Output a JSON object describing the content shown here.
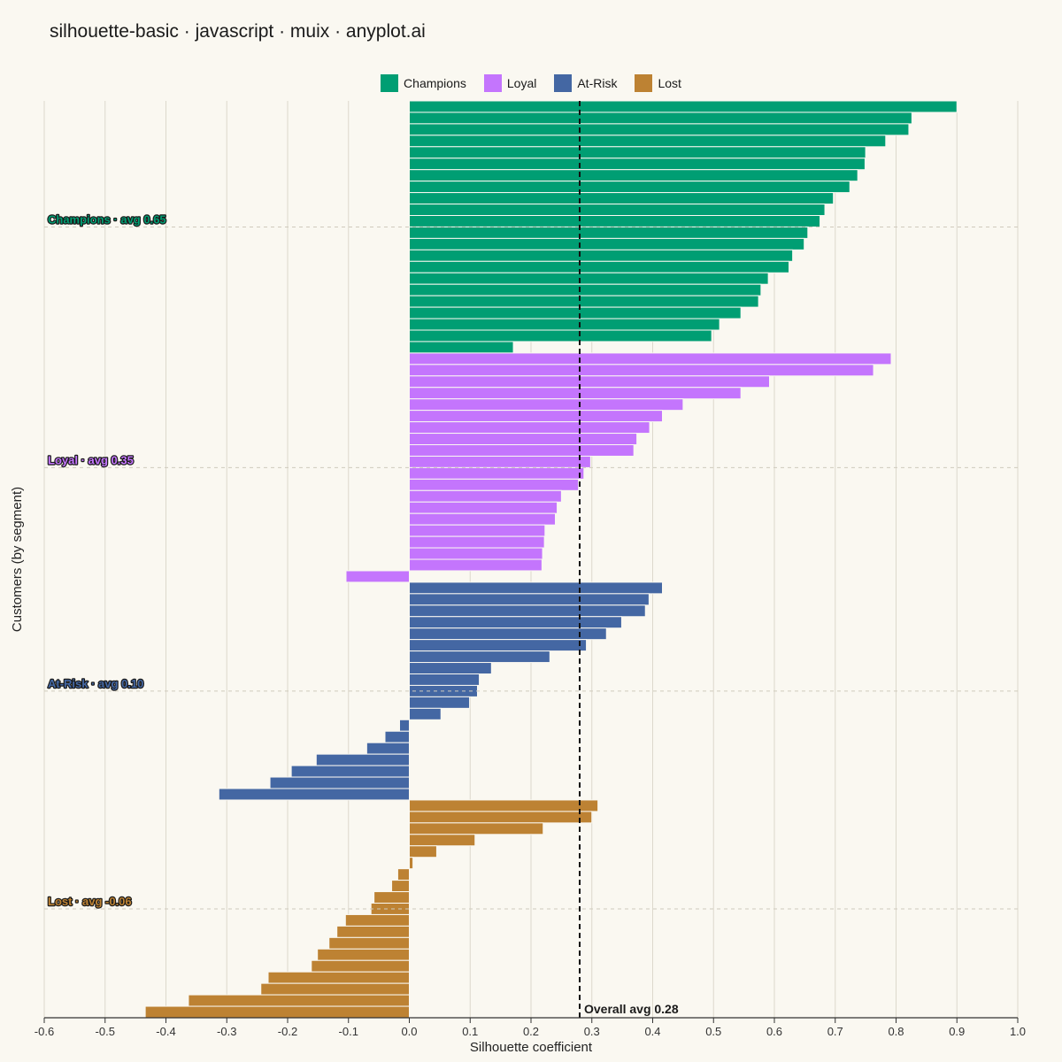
{
  "title": "silhouette-basic · javascript · muix · anyplot.ai",
  "chart_data": {
    "type": "bar",
    "orientation": "horizontal",
    "xlabel": "Silhouette coefficient",
    "ylabel": "Customers (by segment)",
    "xlim": [
      -0.6,
      1.0
    ],
    "xticks": [
      -0.6,
      -0.5,
      -0.4,
      -0.3,
      -0.2,
      -0.1,
      0.0,
      0.1,
      0.2,
      0.3,
      0.4,
      0.5,
      0.6,
      0.7,
      0.8,
      0.9,
      1.0
    ],
    "xtick_labels": [
      "-0.6",
      "-0.5",
      "-0.4",
      "-0.3",
      "-0.2",
      "-0.1",
      "0.0",
      "0.1",
      "0.2",
      "0.3",
      "0.4",
      "0.5",
      "0.6",
      "0.7",
      "0.8",
      "0.9",
      "1.0"
    ],
    "grid": "vertical",
    "legend_position": "top-center",
    "overall_avg": 0.28,
    "overall_avg_label": "Overall avg 0.28",
    "series": [
      {
        "name": "Champions",
        "color": "#009E73",
        "label": "Champions · avg 0.65",
        "values": [
          0.9,
          0.826,
          0.821,
          0.783,
          0.75,
          0.749,
          0.737,
          0.724,
          0.697,
          0.683,
          0.675,
          0.655,
          0.649,
          0.63,
          0.624,
          0.59,
          0.578,
          0.574,
          0.545,
          0.51,
          0.497,
          0.171
        ]
      },
      {
        "name": "Loyal",
        "color": "#C475FD",
        "label": "Loyal · avg 0.35",
        "values": [
          0.792,
          0.763,
          0.592,
          0.545,
          0.45,
          0.416,
          0.395,
          0.374,
          0.369,
          0.298,
          0.287,
          0.278,
          0.25,
          0.243,
          0.24,
          0.223,
          0.222,
          0.219,
          0.218,
          -0.104
        ]
      },
      {
        "name": "At-Risk",
        "color": "#4467A3",
        "label": "At-Risk · avg 0.10",
        "values": [
          0.416,
          0.394,
          0.388,
          0.349,
          0.324,
          0.291,
          0.231,
          0.135,
          0.115,
          0.112,
          0.099,
          0.052,
          -0.016,
          -0.04,
          -0.07,
          -0.153,
          -0.194,
          -0.229,
          -0.313
        ]
      },
      {
        "name": "Lost",
        "color": "#BD8233",
        "label": "Lost · avg -0.06",
        "values": [
          0.31,
          0.3,
          0.22,
          0.108,
          0.045,
          0.006,
          -0.019,
          -0.029,
          -0.058,
          -0.063,
          -0.105,
          -0.119,
          -0.132,
          -0.151,
          -0.161,
          -0.232,
          -0.244,
          -0.363,
          -0.434
        ]
      }
    ]
  }
}
